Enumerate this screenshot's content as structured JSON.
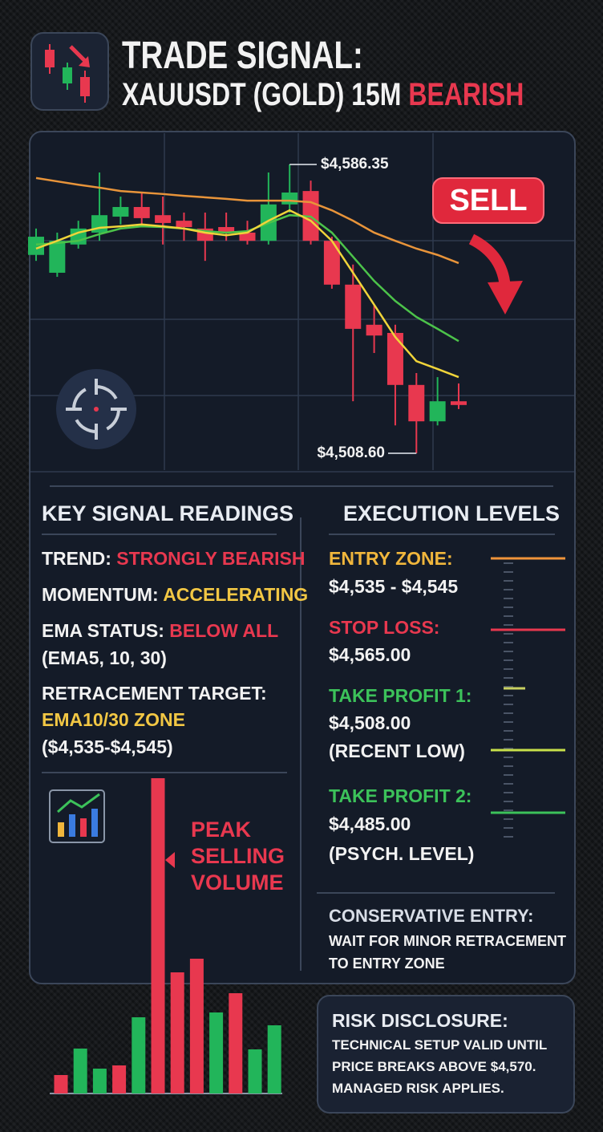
{
  "header": {
    "title": "TRADE SIGNAL:",
    "subtitle": "XAUUSDT (GOLD) 15M",
    "subtitle_accent": "BEARISH"
  },
  "chart_data": [
    {
      "type": "candlestick",
      "open": [
        4562.0,
        4557.2,
        4564.8,
        4568.0,
        4572.3,
        4574.9,
        4572.7,
        4571.2,
        4569.1,
        4569.5,
        4568.0,
        4565.8,
        4575.6,
        4579.2,
        4565.8,
        4554.0,
        4543.2,
        4541.0,
        4527.0,
        4517.2,
        4522.6
      ],
      "high": [
        4569.1,
        4568.0,
        4571.2,
        4584.2,
        4577.7,
        4578.8,
        4577.7,
        4573.4,
        4573.4,
        4573.4,
        4571.2,
        4584.2,
        4586.35,
        4582.0,
        4566.9,
        4559.4,
        4548.6,
        4543.2,
        4530.2,
        4529.1,
        4527.4
      ],
      "low": [
        4560.4,
        4556.1,
        4563.7,
        4565.8,
        4570.2,
        4570.2,
        4564.8,
        4565.8,
        4560.4,
        4565.8,
        4564.8,
        4564.8,
        4573.4,
        4564.8,
        4552.9,
        4522.6,
        4535.6,
        4516.1,
        4508.6,
        4516.1,
        4520.5
      ],
      "close": [
        4566.9,
        4565.8,
        4569.1,
        4572.7,
        4574.9,
        4571.9,
        4570.6,
        4569.5,
        4565.8,
        4568.0,
        4565.8,
        4575.6,
        4578.8,
        4565.8,
        4554.0,
        4542.1,
        4540.3,
        4527.0,
        4517.2,
        4522.6,
        4521.6
      ],
      "up_color": "#22b55a",
      "down_color": "#e8384f",
      "series": [
        {
          "color": "#e8943a",
          "values": [
            4582.7,
            4581.8,
            4580.9,
            4580.1,
            4579.2,
            4578.8,
            4578.4,
            4577.9,
            4577.5,
            4577.1,
            4576.6,
            4576.6,
            4576.6,
            4576.2,
            4574.0,
            4571.2,
            4568.0,
            4565.8,
            4563.7,
            4562.0,
            4559.8
          ]
        },
        {
          "color": "#4cc34a",
          "values": [
            4564.8,
            4565.2,
            4565.8,
            4567.6,
            4569.1,
            4569.7,
            4569.5,
            4569.1,
            4568.4,
            4568.0,
            4568.4,
            4570.6,
            4572.7,
            4572.3,
            4568.0,
            4561.5,
            4555.0,
            4549.6,
            4545.3,
            4542.1,
            4538.8
          ]
        },
        {
          "color": "#f0d43a",
          "values": [
            4563.7,
            4565.8,
            4568.0,
            4569.3,
            4569.7,
            4570.2,
            4569.7,
            4569.1,
            4568.0,
            4567.3,
            4568.0,
            4571.2,
            4574.0,
            4571.2,
            4565.8,
            4557.2,
            4548.6,
            4539.9,
            4533.4,
            4531.3,
            4529.1
          ]
        }
      ],
      "high_label": "$4,586.35",
      "low_label": "$4,508.60",
      "badge": "SELL"
    },
    {
      "type": "bar",
      "values": [
        23,
        56,
        31,
        35,
        95,
        393,
        151,
        168,
        101,
        125,
        55,
        85
      ],
      "colors": [
        "#e8384f",
        "#22b55a",
        "#22b55a",
        "#e8384f",
        "#22b55a",
        "#e8384f",
        "#e8384f",
        "#e8384f",
        "#22b55a",
        "#e8384f",
        "#22b55a",
        "#22b55a"
      ],
      "annotation": [
        "PEAK",
        "SELLING",
        "VOLUME"
      ]
    }
  ],
  "readings": {
    "title": "KEY SIGNAL READINGS",
    "items": [
      {
        "label": "TREND:",
        "value": "STRONGLY BEARISH"
      },
      {
        "label": "MOMENTUM:",
        "value": "ACCELERATING"
      },
      {
        "label": "EMA STATUS:",
        "value": "BELOW ALL",
        "note": "(EMA5, 10, 30)"
      },
      {
        "label": "RETRACEMENT TARGET:",
        "value": "EMA10/30 ZONE",
        "note": "($4,535-$4,545)"
      }
    ]
  },
  "execution": {
    "title": "EXECUTION LEVELS",
    "levels": [
      {
        "label": "ENTRY ZONE:",
        "value": "$4,535 - $4,545"
      },
      {
        "label": "STOP LOSS:",
        "value": "$4,565.00"
      },
      {
        "label": "TAKE PROFIT 1:",
        "value": "$4,508.00",
        "note": "(RECENT LOW)"
      },
      {
        "label": "TAKE PROFIT 2:",
        "value": "$4,485.00",
        "note": "(PSYCH. LEVEL)"
      }
    ]
  },
  "conservative": {
    "title": "CONSERVATIVE ENTRY:",
    "lines": [
      "WAIT FOR MINOR RETRACEMENT",
      "TO ENTRY ZONE"
    ]
  },
  "risk": {
    "title": "RISK DISCLOSURE:",
    "lines": [
      "TECHNICAL SETUP VALID UNTIL",
      "PRICE BREAKS ABOVE $4,570.",
      "MANAGED RISK APPLIES."
    ]
  }
}
